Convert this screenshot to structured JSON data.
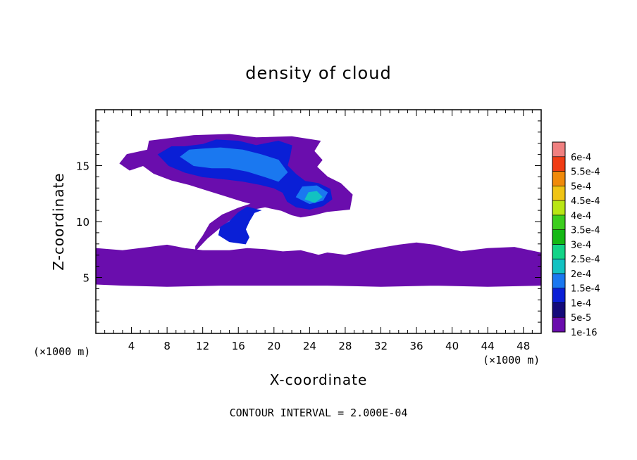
{
  "chart_data": {
    "type": "heatmap",
    "title": "density of cloud",
    "xlabel": "X-coordinate",
    "ylabel": "Z-coordinate",
    "x_unit": "(×1000 m)",
    "x_unit_right": "(×1000 m)",
    "xlim": [
      0,
      50
    ],
    "ylim": [
      0,
      20
    ],
    "x_ticks": [
      4,
      8,
      12,
      16,
      20,
      24,
      28,
      32,
      36,
      40,
      44,
      48
    ],
    "y_ticks": [
      5,
      10,
      15
    ],
    "footer": "CONTOUR INTERVAL = 2.000E-04",
    "colorbar": {
      "labels": [
        "1e-16",
        "5e-5",
        "1e-4",
        "1.5e-4",
        "2e-4",
        "2.5e-4",
        "3e-4",
        "3.5e-4",
        "4e-4",
        "4.5e-4",
        "5e-4",
        "5.5e-4",
        "6e-4"
      ],
      "colors": [
        "#6a0dad",
        "#140a7a",
        "#0a1fd6",
        "#1a78f0",
        "#12c2c2",
        "#12d488",
        "#14b814",
        "#3cce1e",
        "#b9e614",
        "#f0c414",
        "#f08a0a",
        "#f03c14",
        "#f08080"
      ]
    },
    "regions": [
      {
        "level": "1e-16",
        "polygons": [
          [
            [
              0,
              4.4
            ],
            [
              3,
              4.3
            ],
            [
              8,
              4.2
            ],
            [
              14,
              4.3
            ],
            [
              20,
              4.3
            ],
            [
              26,
              4.3
            ],
            [
              32,
              4.2
            ],
            [
              38,
              4.3
            ],
            [
              44,
              4.2
            ],
            [
              50,
              4.3
            ],
            [
              50,
              7.2
            ],
            [
              47,
              7.7
            ],
            [
              44,
              7.6
            ],
            [
              41,
              7.3
            ],
            [
              38,
              7.9
            ],
            [
              36,
              8.1
            ],
            [
              34,
              7.9
            ],
            [
              31,
              7.5
            ],
            [
              28,
              7.0
            ],
            [
              26,
              7.2
            ],
            [
              25,
              7.0
            ],
            [
              23,
              7.4
            ],
            [
              21,
              7.3
            ],
            [
              19,
              7.5
            ],
            [
              17,
              7.6
            ],
            [
              15,
              7.4
            ],
            [
              12,
              7.4
            ],
            [
              10,
              7.6
            ],
            [
              8,
              7.9
            ],
            [
              6,
              7.7
            ],
            [
              3,
              7.4
            ],
            [
              0,
              7.6
            ]
          ],
          [
            [
              11.2,
              7.4
            ],
            [
              12.5,
              8.5
            ],
            [
              14,
              9.5
            ],
            [
              15.5,
              10.4
            ],
            [
              17,
              11.0
            ],
            [
              19,
              11.3
            ],
            [
              20.8,
              11.0
            ],
            [
              22,
              10.6
            ],
            [
              23,
              10.4
            ],
            [
              24.5,
              10.6
            ],
            [
              26,
              10.9
            ],
            [
              28.5,
              11.1
            ],
            [
              28.8,
              12.4
            ],
            [
              27.5,
              13.4
            ],
            [
              26,
              14.0
            ],
            [
              24.8,
              14.9
            ],
            [
              25.4,
              15.5
            ],
            [
              24.5,
              16.3
            ],
            [
              25.2,
              17.2
            ],
            [
              22,
              17.6
            ],
            [
              18,
              17.5
            ],
            [
              15,
              17.8
            ],
            [
              11,
              17.7
            ],
            [
              9,
              17.5
            ],
            [
              6,
              17.2
            ],
            [
              5.8,
              16.4
            ],
            [
              3.5,
              16.0
            ],
            [
              2.7,
              15.2
            ],
            [
              3.8,
              14.6
            ],
            [
              5.3,
              15.0
            ],
            [
              6.5,
              14.3
            ],
            [
              8.5,
              13.7
            ],
            [
              10.5,
              13.3
            ],
            [
              12.5,
              12.8
            ],
            [
              14.5,
              12.3
            ],
            [
              16.5,
              11.8
            ],
            [
              17.5,
              11.6
            ],
            [
              16,
              11.2
            ],
            [
              14.2,
              10.6
            ],
            [
              12.8,
              9.8
            ],
            [
              12.0,
              8.7
            ],
            [
              11.2,
              7.8
            ]
          ]
        ]
      },
      {
        "level": "1e-4",
        "polygons": [
          [
            [
              7.0,
              16.0
            ],
            [
              8.2,
              15.0
            ],
            [
              10.0,
              14.4
            ],
            [
              12.0,
              14.0
            ],
            [
              14.5,
              13.8
            ],
            [
              16.5,
              13.6
            ],
            [
              18.5,
              13.3
            ],
            [
              20.0,
              13.0
            ],
            [
              21.0,
              12.6
            ],
            [
              21.5,
              11.8
            ],
            [
              22.5,
              11.3
            ],
            [
              24.0,
              11.1
            ],
            [
              25.5,
              11.4
            ],
            [
              26.5,
              12.0
            ],
            [
              26.3,
              12.9
            ],
            [
              25.0,
              13.4
            ],
            [
              23.5,
              13.6
            ],
            [
              22.5,
              14.2
            ],
            [
              21.5,
              15.0
            ],
            [
              21.8,
              15.9
            ],
            [
              22.0,
              16.8
            ],
            [
              20.5,
              17.2
            ],
            [
              18.0,
              16.8
            ],
            [
              16.0,
              17.2
            ],
            [
              13.5,
              17.3
            ],
            [
              12.0,
              16.9
            ],
            [
              10.0,
              16.7
            ],
            [
              8.5,
              16.7
            ]
          ],
          [
            [
              13.8,
              8.8
            ],
            [
              15.0,
              8.2
            ],
            [
              16.8,
              8.0
            ],
            [
              17.2,
              8.6
            ],
            [
              16.8,
              9.3
            ],
            [
              17.2,
              10.0
            ],
            [
              17.8,
              10.8
            ],
            [
              18.5,
              11.0
            ],
            [
              17.0,
              11.3
            ],
            [
              16.0,
              10.8
            ],
            [
              15.0,
              10.0
            ],
            [
              14.0,
              9.5
            ]
          ]
        ]
      },
      {
        "level": "1.5e-4",
        "polygons": [
          [
            [
              9.5,
              15.8
            ],
            [
              11.0,
              15.0
            ],
            [
              13.0,
              14.8
            ],
            [
              15.0,
              14.8
            ],
            [
              17.0,
              14.5
            ],
            [
              19.0,
              14.0
            ],
            [
              20.5,
              13.6
            ],
            [
              21.5,
              14.4
            ],
            [
              20.5,
              15.5
            ],
            [
              18.5,
              16.0
            ],
            [
              16.5,
              16.4
            ],
            [
              14.0,
              16.6
            ],
            [
              12.0,
              16.5
            ],
            [
              10.5,
              16.4
            ]
          ],
          [
            [
              22.5,
              12.2
            ],
            [
              24.0,
              11.6
            ],
            [
              25.5,
              11.9
            ],
            [
              26.0,
              12.6
            ],
            [
              24.8,
              13.2
            ],
            [
              23.2,
              13.1
            ]
          ]
        ]
      },
      {
        "level": "2e-4",
        "polygons": [
          [
            [
              23.5,
              12.0
            ],
            [
              24.6,
              11.7
            ],
            [
              25.4,
              12.2
            ],
            [
              24.8,
              12.7
            ],
            [
              23.9,
              12.6
            ]
          ]
        ]
      }
    ]
  }
}
